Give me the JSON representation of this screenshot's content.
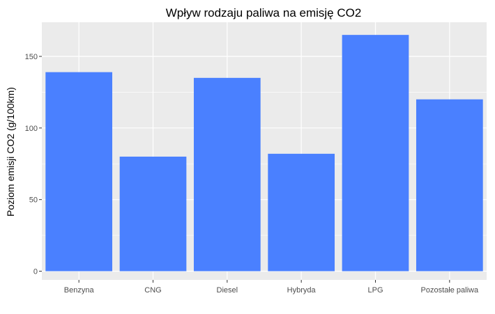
{
  "chart_data": {
    "type": "bar",
    "title": "Wpływ rodzaju paliwa na emisję CO2",
    "xlabel": "",
    "ylabel": "Poziom emisji CO2 (g/100km)",
    "categories": [
      "Benzyna",
      "CNG",
      "Diesel",
      "Hybryda",
      "LPG",
      "Pozostałe paliwa"
    ],
    "values": [
      139,
      80,
      135,
      82,
      165,
      120
    ],
    "ylim": [
      0,
      175
    ],
    "yticks": [
      0,
      50,
      100,
      150
    ],
    "grid": true,
    "colors": {
      "bar": "#4A80FF",
      "panel": "#EBEBEB",
      "grid": "#FFFFFF",
      "tick_text": "#4D4D4D"
    }
  }
}
